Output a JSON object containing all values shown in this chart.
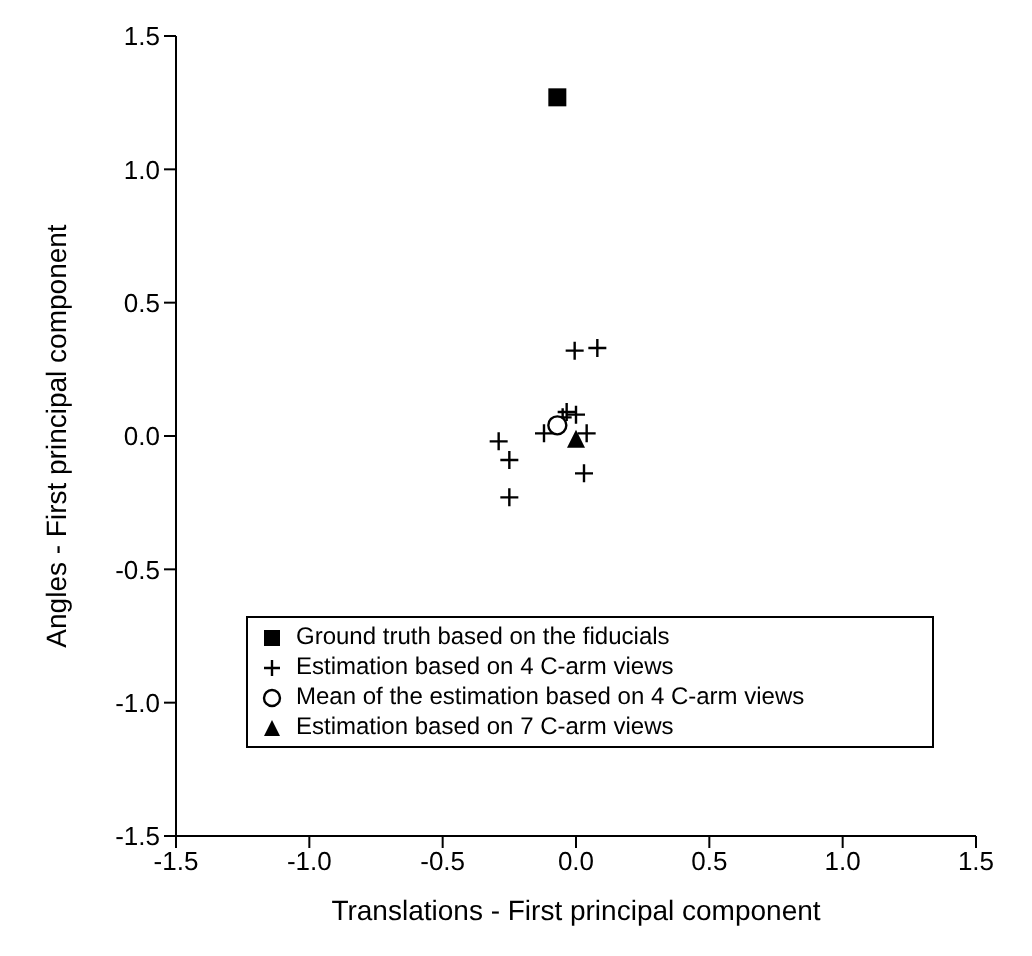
{
  "chart_data": {
    "type": "scatter",
    "xlabel": "Translations - First principal component",
    "ylabel": "Angles - First principal component",
    "xlim": [
      -1.5,
      1.5
    ],
    "xticks": [
      {
        "value": -1.5,
        "label": "-1.5"
      },
      {
        "value": -1,
        "label": "-1.0"
      },
      {
        "value": -0.5,
        "label": "-0.5"
      },
      {
        "value": 0,
        "label": "0.0"
      },
      {
        "value": 0.5,
        "label": "0.5"
      },
      {
        "value": 1,
        "label": "1.0"
      },
      {
        "value": 1.5,
        "label": "1.5"
      }
    ],
    "ylim": [
      -1.5,
      1.5
    ],
    "yticks": [
      {
        "value": -1.5,
        "label": "-1.5"
      },
      {
        "value": -1,
        "label": "-1.0"
      },
      {
        "value": -0.5,
        "label": "-0.5"
      },
      {
        "value": 0,
        "label": "0.0"
      },
      {
        "value": 0.5,
        "label": "0.5"
      },
      {
        "value": 1,
        "label": "1.0"
      },
      {
        "value": 1.5,
        "label": "1.5"
      }
    ],
    "grid": false,
    "legend": "bottom",
    "series": [
      {
        "name": "Ground truth based on the fiducials",
        "color": "#000000",
        "marker": "square",
        "x": [
          -0.07
        ],
        "values": [
          1.27
        ]
      },
      {
        "name": "Estimation based on 4 C-arm views",
        "color": "#000000",
        "marker": "cross",
        "x": [
          -0.005,
          0.08,
          -0.035,
          0.0,
          -0.05,
          -0.12,
          0.04,
          -0.29,
          -0.25,
          0.03,
          -0.25
        ],
        "values": [
          0.32,
          0.33,
          0.09,
          0.08,
          0.07,
          0.01,
          0.01,
          -0.02,
          -0.09,
          -0.14,
          -0.23
        ]
      },
      {
        "name": "Mean of the estimation based on 4 C-arm views",
        "color": "#000000",
        "marker": "circle",
        "x": [
          -0.07
        ],
        "values": [
          0.04
        ]
      },
      {
        "name": "Estimation based on 7 C-arm views",
        "color": "#000000",
        "marker": "triangle",
        "x": [
          0.0
        ],
        "values": [
          -0.01
        ]
      }
    ]
  }
}
